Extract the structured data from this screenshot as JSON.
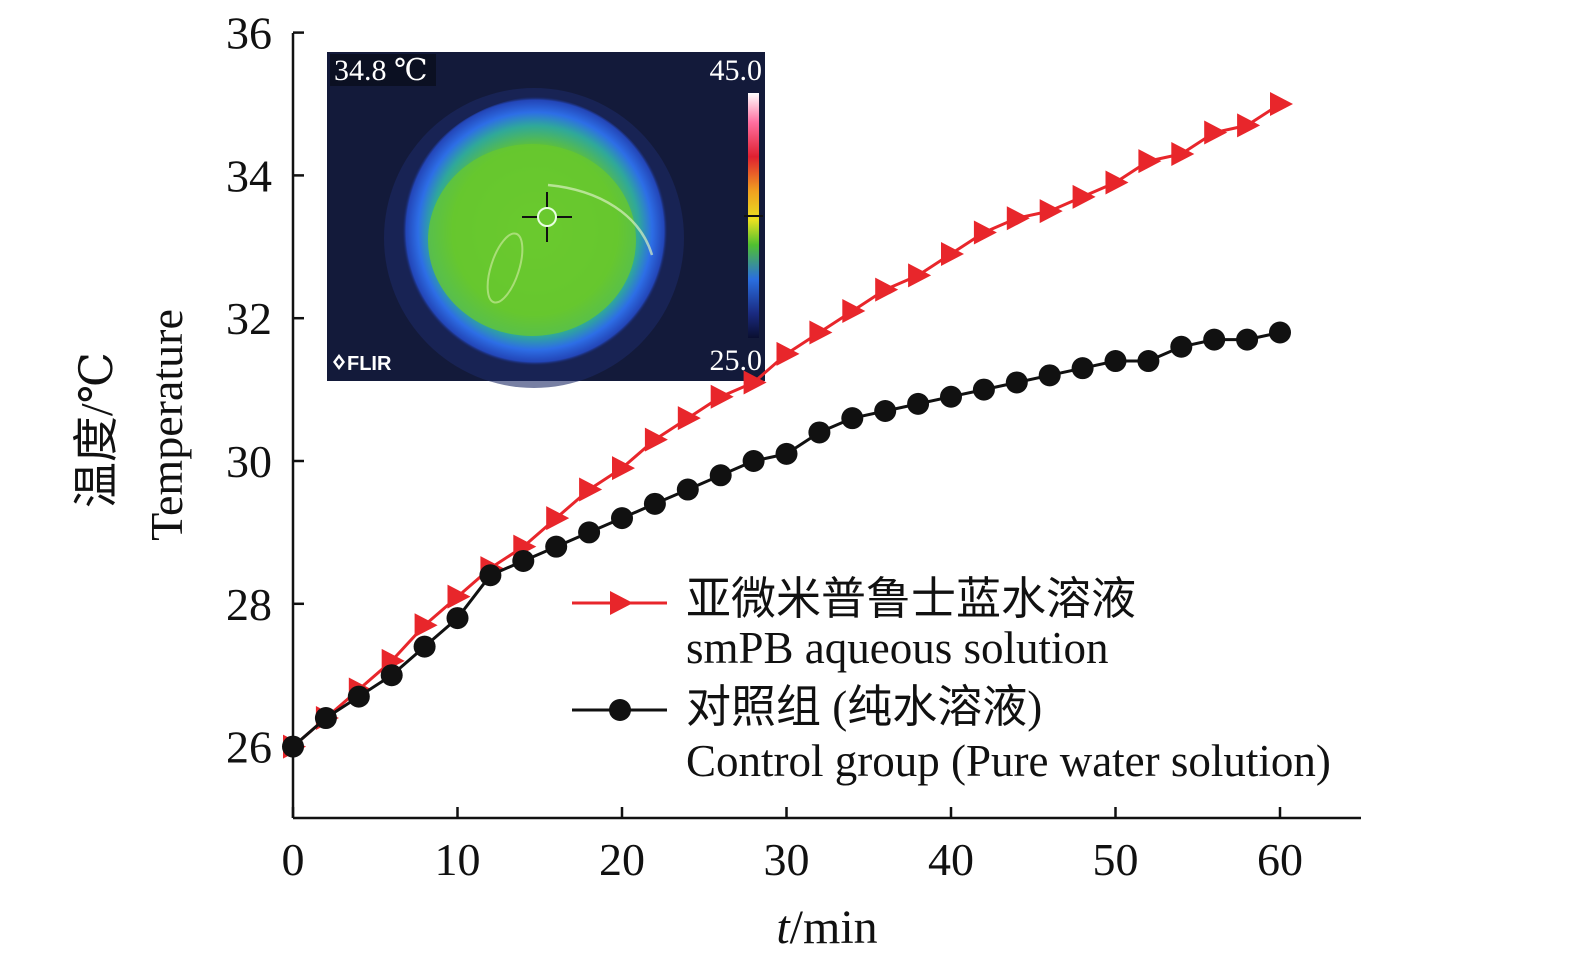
{
  "chart_data": {
    "type": "line",
    "xlabel_italic": "t",
    "xlabel_rest": "/min",
    "ylabel_cn": "温度/℃",
    "ylabel_en": "Temperature",
    "xlim": [
      0,
      65
    ],
    "ylim": [
      25,
      36
    ],
    "xticks": [
      0,
      10,
      20,
      30,
      40,
      50,
      60
    ],
    "yticks": [
      26,
      28,
      30,
      32,
      34,
      36
    ],
    "x": [
      0,
      2,
      4,
      6,
      8,
      10,
      12,
      14,
      16,
      18,
      20,
      22,
      24,
      26,
      28,
      30,
      32,
      34,
      36,
      38,
      40,
      42,
      44,
      46,
      48,
      50,
      52,
      54,
      56,
      58,
      60
    ],
    "series": [
      {
        "name_cn": "亚微米普鲁士蓝水溶液",
        "name_en": "smPB aqueous solution",
        "color": "#e8262b",
        "marker": "triangle-right",
        "values": [
          26.0,
          26.4,
          26.8,
          27.2,
          27.7,
          28.1,
          28.5,
          28.8,
          29.2,
          29.6,
          29.9,
          30.3,
          30.6,
          30.9,
          31.1,
          31.5,
          31.8,
          32.1,
          32.4,
          32.6,
          32.9,
          33.2,
          33.4,
          33.5,
          33.7,
          33.9,
          34.2,
          34.3,
          34.6,
          34.7,
          35.0
        ]
      },
      {
        "name_cn": "对照组 (纯水溶液)",
        "name_en": "Control group (Pure water solution)",
        "color": "#111111",
        "marker": "circle",
        "values": [
          26.0,
          26.4,
          26.7,
          27.0,
          27.4,
          27.8,
          28.4,
          28.6,
          28.8,
          29.0,
          29.2,
          29.4,
          29.6,
          29.8,
          30.0,
          30.1,
          30.4,
          30.6,
          30.7,
          30.8,
          30.9,
          31.0,
          31.1,
          31.2,
          31.3,
          31.4,
          31.4,
          31.6,
          31.7,
          31.7,
          31.8
        ]
      }
    ],
    "grid": false,
    "legend_placement": "lower-right"
  },
  "inset": {
    "type": "thermal-image",
    "reading": "34.8 ℃",
    "scale_max": "45.0",
    "scale_min": "25.0",
    "brand": "FLIR",
    "colors": {
      "background": "#131a3a",
      "cool": "#2e5de0",
      "warm": "#6fcb2c"
    }
  }
}
